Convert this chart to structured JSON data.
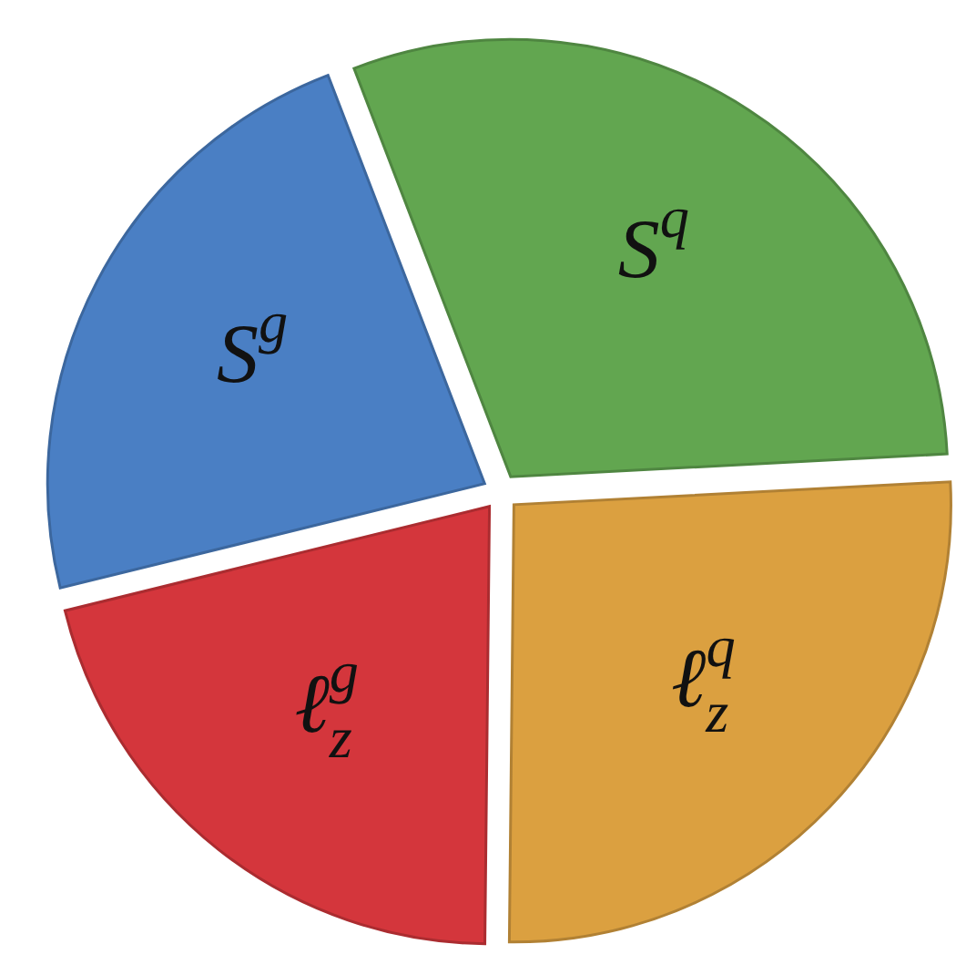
{
  "chart_data": {
    "type": "pie",
    "categories": [
      "S$^{q}$",
      "ℓ$^{q}$$_{z}$",
      "ℓ$^{g}$$_{z}$",
      "S$^{g}$"
    ],
    "values": [
      30,
      26,
      21,
      23
    ],
    "colors": [
      "#62a650",
      "#dba040",
      "#d4363c",
      "#4a7fc4"
    ]
  }
}
